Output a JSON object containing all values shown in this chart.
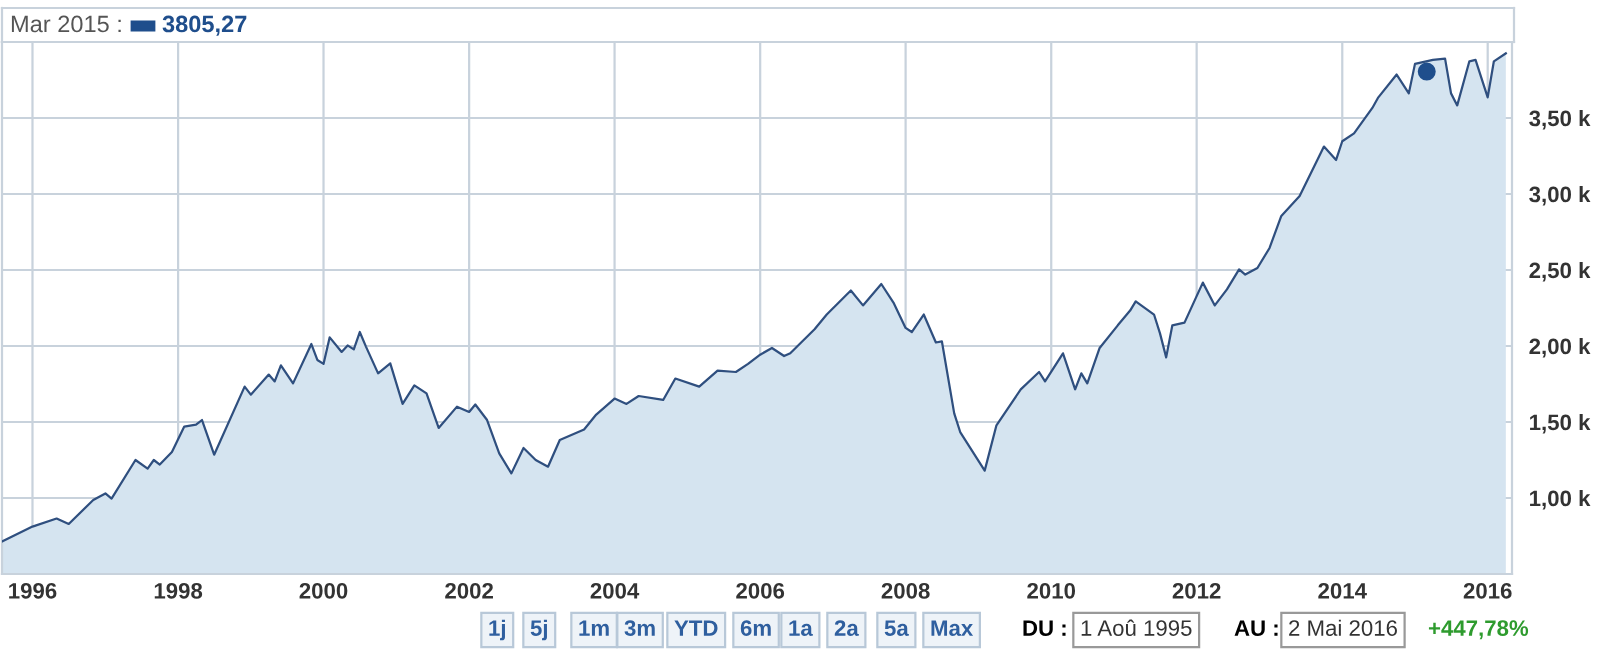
{
  "chart_data": {
    "type": "area",
    "x": [
      "1995-08",
      "1996-01",
      "1996-05",
      "1996-07",
      "1996-11",
      "1997-01",
      "1997-02",
      "1997-06",
      "1997-08",
      "1997-09",
      "1997-10",
      "1997-12",
      "1998-02",
      "1998-04",
      "1998-05",
      "1998-07",
      "1998-12",
      "1999-01",
      "1999-04",
      "1999-05",
      "1999-06",
      "1999-08",
      "1999-11",
      "1999-12",
      "2000-01",
      "2000-02",
      "2000-04",
      "2000-05",
      "2000-06",
      "2000-07",
      "2000-08",
      "2000-10",
      "2000-12",
      "2001-02",
      "2001-04",
      "2001-06",
      "2001-08",
      "2001-11",
      "2002-01",
      "2002-02",
      "2002-04",
      "2002-06",
      "2002-08",
      "2002-10",
      "2002-12",
      "2003-02",
      "2003-04",
      "2003-08",
      "2003-10",
      "2004-01",
      "2004-03",
      "2004-05",
      "2004-09",
      "2004-11",
      "2005-03",
      "2005-06",
      "2005-09",
      "2005-11",
      "2006-01",
      "2006-03",
      "2006-05",
      "2006-06",
      "2006-10",
      "2006-12",
      "2007-04",
      "2007-06",
      "2007-09",
      "2007-11",
      "2008-01",
      "2008-02",
      "2008-04",
      "2008-06",
      "2008-07",
      "2008-09",
      "2008-10",
      "2009-02",
      "2009-04",
      "2009-08",
      "2009-11",
      "2009-12",
      "2010-03",
      "2010-05",
      "2010-06",
      "2010-07",
      "2010-09",
      "2010-12",
      "2011-02",
      "2011-03",
      "2011-06",
      "2011-07",
      "2011-08",
      "2011-09",
      "2011-11",
      "2012-02",
      "2012-04",
      "2012-06",
      "2012-08",
      "2012-09",
      "2012-11",
      "2013-01",
      "2013-03",
      "2013-06",
      "2013-10",
      "2013-12",
      "2014-01",
      "2014-03",
      "2014-06",
      "2014-07",
      "2014-10",
      "2014-12",
      "2015-01",
      "2015-04",
      "2015-06",
      "2015-07",
      "2015-08",
      "2015-10",
      "2015-11",
      "2016-01",
      "2016-02",
      "2016-04"
    ],
    "series": [
      {
        "color": "#2f4f7f",
        "values": [
          714,
          812,
          865,
          829,
          987,
          1030,
          996,
          1250,
          1193,
          1250,
          1220,
          1303,
          1470,
          1483,
          1513,
          1285,
          1733,
          1680,
          1812,
          1767,
          1873,
          1754,
          2013,
          1908,
          1882,
          2057,
          1961,
          2004,
          1978,
          2092,
          1996,
          1820,
          1886,
          1619,
          1741,
          1688,
          1461,
          1601,
          1566,
          1615,
          1513,
          1294,
          1162,
          1329,
          1250,
          1206,
          1382,
          1451,
          1549,
          1654,
          1619,
          1671,
          1645,
          1786,
          1733,
          1838,
          1829,
          1882,
          1943,
          1987,
          1934,
          1952,
          2110,
          2207,
          2365,
          2267,
          2408,
          2286,
          2119,
          2092,
          2207,
          2023,
          2031,
          1557,
          1434,
          1180,
          1478,
          1715,
          1829,
          1767,
          1952,
          1715,
          1820,
          1754,
          1987,
          2136,
          2233,
          2294,
          2207,
          2083,
          1925,
          2136,
          2154,
          2417,
          2267,
          2373,
          2504,
          2470,
          2513,
          2645,
          2856,
          2987,
          3312,
          3224,
          3347,
          3399,
          3566,
          3636,
          3786,
          3662,
          3856,
          3882,
          3891,
          3662,
          3583,
          3873,
          3882,
          3636,
          3873,
          3925
        ]
      },
      {
        "type": "scatter",
        "marker": "circle",
        "color": "#1f4e8c",
        "x": [
          "2015-03"
        ],
        "values": [
          3805.27
        ]
      }
    ],
    "xlim": [
      "1995-08-01",
      "2016-05-02"
    ],
    "xticks": [
      "1996",
      "1998",
      "2000",
      "2002",
      "2004",
      "2006",
      "2008",
      "2010",
      "2012",
      "2014",
      "2016"
    ],
    "ylim": [
      500,
      4000
    ],
    "yticks": [
      {
        "value": 1000,
        "label": "1,00 k"
      },
      {
        "value": 1500,
        "label": "1,50 k"
      },
      {
        "value": 2000,
        "label": "2,00 k"
      },
      {
        "value": 2500,
        "label": "2,50 k"
      },
      {
        "value": 3000,
        "label": "3,00 k"
      },
      {
        "value": 3500,
        "label": "3,50 k"
      }
    ],
    "grid": true,
    "annotations": [
      "Mar 2015 :",
      "3805,27",
      "1j",
      "5j",
      "1m",
      "3m",
      "YTD",
      "6m",
      "1a",
      "2a",
      "5a",
      "Max",
      "DU :",
      "1 Aoû 1995",
      "AU :",
      "2 Mai 2016",
      "+447,78%"
    ]
  }
}
